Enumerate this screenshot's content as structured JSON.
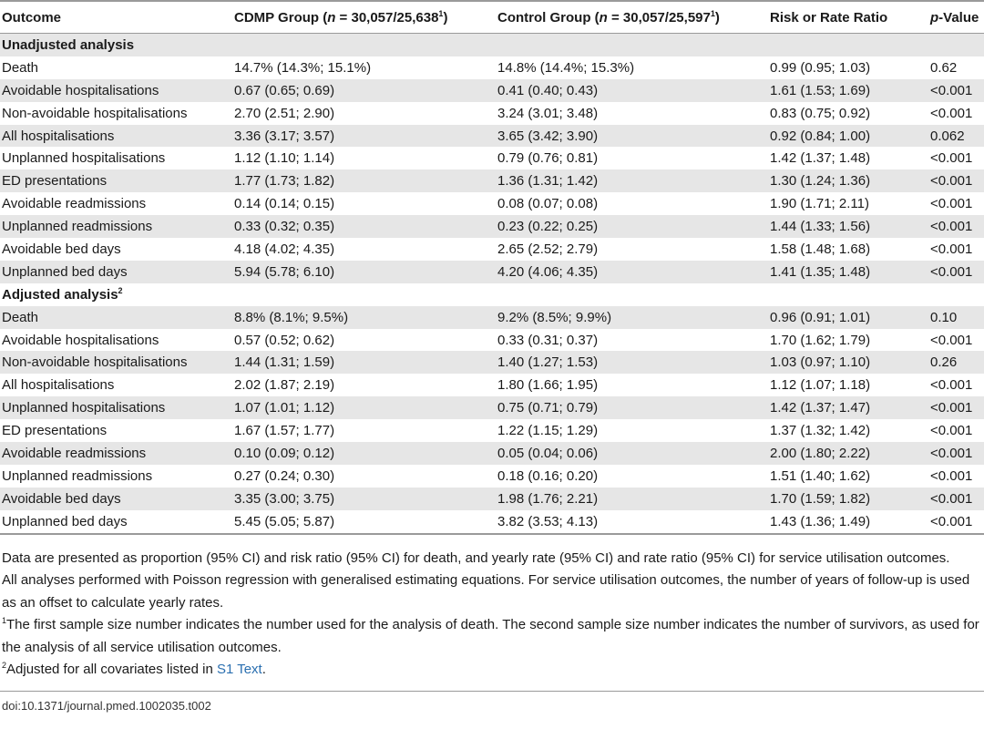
{
  "table": {
    "headers": {
      "outcome": "Outcome",
      "cdmp_prefix": "CDMP Group (",
      "cdmp_n_italic": "n",
      "cdmp_count": " = 30,057/25,638",
      "cdmp_sup": "1",
      "cdmp_suffix": ")",
      "control_prefix": "Control Group (",
      "control_n_italic": "n",
      "control_count": " = 30,057/25,597",
      "control_sup": "1",
      "control_suffix": ")",
      "ratio": "Risk or Rate Ratio",
      "p_italic": "p",
      "p_rest": "-Value"
    },
    "sections": [
      {
        "title": "Unadjusted analysis",
        "title_sup": "",
        "rows": [
          [
            "Death",
            "14.7% (14.3%; 15.1%)",
            "14.8% (14.4%; 15.3%)",
            "0.99 (0.95; 1.03)",
            "0.62"
          ],
          [
            "Avoidable hospitalisations",
            "0.67 (0.65; 0.69)",
            "0.41 (0.40; 0.43)",
            "1.61 (1.53; 1.69)",
            "<0.001"
          ],
          [
            "Non-avoidable hospitalisations",
            "2.70 (2.51; 2.90)",
            "3.24 (3.01; 3.48)",
            "0.83 (0.75; 0.92)",
            "<0.001"
          ],
          [
            "All hospitalisations",
            "3.36 (3.17; 3.57)",
            "3.65 (3.42; 3.90)",
            "0.92 (0.84; 1.00)",
            "0.062"
          ],
          [
            "Unplanned hospitalisations",
            "1.12 (1.10; 1.14)",
            "0.79 (0.76; 0.81)",
            "1.42 (1.37; 1.48)",
            "<0.001"
          ],
          [
            "ED presentations",
            "1.77 (1.73; 1.82)",
            "1.36 (1.31; 1.42)",
            "1.30 (1.24; 1.36)",
            "<0.001"
          ],
          [
            "Avoidable readmissions",
            "0.14 (0.14; 0.15)",
            "0.08 (0.07; 0.08)",
            "1.90 (1.71; 2.11)",
            "<0.001"
          ],
          [
            "Unplanned readmissions",
            "0.33 (0.32; 0.35)",
            "0.23 (0.22; 0.25)",
            "1.44 (1.33; 1.56)",
            "<0.001"
          ],
          [
            "Avoidable bed days",
            "4.18 (4.02; 4.35)",
            "2.65 (2.52; 2.79)",
            "1.58 (1.48; 1.68)",
            "<0.001"
          ],
          [
            "Unplanned bed days",
            "5.94 (5.78; 6.10)",
            "4.20 (4.06; 4.35)",
            "1.41 (1.35; 1.48)",
            "<0.001"
          ]
        ]
      },
      {
        "title": "Adjusted analysis",
        "title_sup": "2",
        "rows": [
          [
            "Death",
            "8.8% (8.1%; 9.5%)",
            "9.2% (8.5%; 9.9%)",
            "0.96 (0.91; 1.01)",
            "0.10"
          ],
          [
            "Avoidable hospitalisations",
            "0.57 (0.52; 0.62)",
            "0.33 (0.31; 0.37)",
            "1.70 (1.62; 1.79)",
            "<0.001"
          ],
          [
            "Non-avoidable hospitalisations",
            "1.44 (1.31; 1.59)",
            "1.40 (1.27; 1.53)",
            "1.03 (0.97; 1.10)",
            "0.26"
          ],
          [
            "All hospitalisations",
            "2.02 (1.87; 2.19)",
            "1.80 (1.66; 1.95)",
            "1.12 (1.07; 1.18)",
            "<0.001"
          ],
          [
            "Unplanned hospitalisations",
            "1.07 (1.01; 1.12)",
            "0.75 (0.71; 0.79)",
            "1.42 (1.37; 1.47)",
            "<0.001"
          ],
          [
            "ED presentations",
            "1.67 (1.57; 1.77)",
            "1.22 (1.15; 1.29)",
            "1.37 (1.32; 1.42)",
            "<0.001"
          ],
          [
            "Avoidable readmissions",
            "0.10 (0.09; 0.12)",
            "0.05 (0.04; 0.06)",
            "2.00 (1.80; 2.22)",
            "<0.001"
          ],
          [
            "Unplanned readmissions",
            "0.27 (0.24; 0.30)",
            "0.18 (0.16; 0.20)",
            "1.51 (1.40; 1.62)",
            "<0.001"
          ],
          [
            "Avoidable bed days",
            "3.35 (3.00; 3.75)",
            "1.98 (1.76; 2.21)",
            "1.70 (1.59; 1.82)",
            "<0.001"
          ],
          [
            "Unplanned bed days",
            "5.45 (5.05; 5.87)",
            "3.82 (3.53; 4.13)",
            "1.43 (1.36; 1.49)",
            "<0.001"
          ]
        ]
      }
    ]
  },
  "notes": {
    "note1": "Data are presented as proportion (95% CI) and risk ratio (95% CI) for death, and yearly rate (95% CI) and rate ratio (95% CI) for service utilisation outcomes.",
    "note2": "All analyses performed with Poisson regression with generalised estimating equations. For service utilisation outcomes, the number of years of follow-up is used as an offset to calculate yearly rates.",
    "footnote1_marker": "1",
    "footnote1_text": "The first sample size number indicates the number used for the analysis of death. The second sample size number indicates the number of survivors, as used for the analysis of all service utilisation outcomes.",
    "footnote2_marker": "2",
    "footnote2_text": "Adjusted for all covariates listed in ",
    "footnote2_link": "S1 Text",
    "footnote2_end": "."
  },
  "doi": "doi:10.1371/journal.pmed.1002035.t002",
  "colors": {
    "shade": "#e6e6e6",
    "rule": "#9a9a9a",
    "link": "#2a6fb0"
  }
}
